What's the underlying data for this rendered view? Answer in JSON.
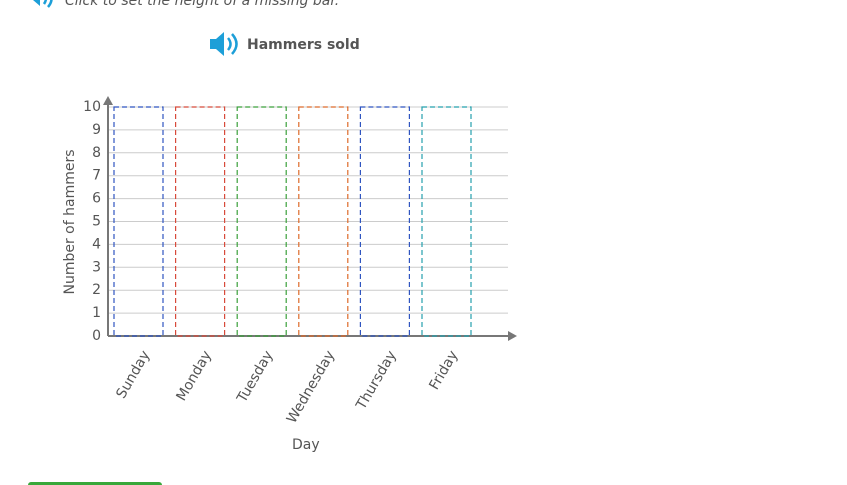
{
  "instruction": "Click to set the height of a missing bar.",
  "chart_data": {
    "type": "bar",
    "title": "Hammers sold",
    "x_label": "Day",
    "y_label": "Number of hammers",
    "categories": [
      "Sunday",
      "Monday",
      "Tuesday",
      "Wednesday",
      "Thursday",
      "Friday"
    ],
    "bar_colors": [
      "#2f55c0",
      "#d84a3a",
      "#3aa03a",
      "#dd6a2a",
      "#2f55c0",
      "#25a0ad"
    ],
    "ylim": [
      0,
      10
    ],
    "yticks": [
      0,
      1,
      2,
      3,
      4,
      5,
      6,
      7,
      8,
      9,
      10
    ],
    "grid": true
  }
}
